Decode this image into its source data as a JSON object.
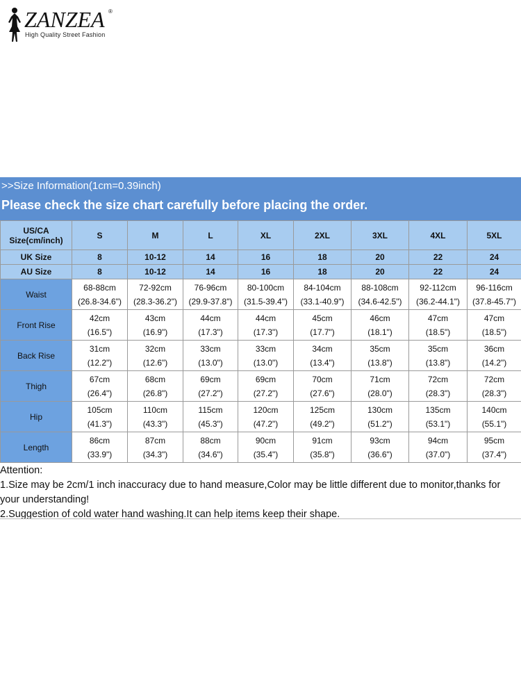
{
  "brand": {
    "name": "ZANZEA",
    "registered": "®",
    "tagline": "High Quality Street Fashion"
  },
  "banner": {
    "info": ">>Size Information(1cm=0.39inch)",
    "notice": "Please check the size chart carefully before placing the order."
  },
  "table": {
    "header_label": "US/CA Size(cm/inch)",
    "sizes": [
      "S",
      "M",
      "L",
      "XL",
      "2XL",
      "3XL",
      "4XL",
      "5XL"
    ],
    "uk_label": "UK Size",
    "uk": [
      "8",
      "10-12",
      "14",
      "16",
      "18",
      "20",
      "22",
      "24"
    ],
    "au_label": "AU Size",
    "au": [
      "8",
      "10-12",
      "14",
      "16",
      "18",
      "20",
      "22",
      "24"
    ],
    "rows": [
      {
        "label": "Waist",
        "cm": [
          "68-88cm",
          "72-92cm",
          "76-96cm",
          "80-100cm",
          "84-104cm",
          "88-108cm",
          "92-112cm",
          "96-116cm"
        ],
        "inch": [
          "(26.8-34.6\")",
          "(28.3-36.2\")",
          "(29.9-37.8\")",
          "(31.5-39.4\")",
          "(33.1-40.9\")",
          "(34.6-42.5\")",
          "(36.2-44.1\")",
          "(37.8-45.7\")"
        ]
      },
      {
        "label": "Front Rise",
        "cm": [
          "42cm",
          "43cm",
          "44cm",
          "44cm",
          "45cm",
          "46cm",
          "47cm",
          "47cm"
        ],
        "inch": [
          "(16.5\")",
          "(16.9\")",
          "(17.3\")",
          "(17.3\")",
          "(17.7\")",
          "(18.1\")",
          "(18.5\")",
          "(18.5\")"
        ]
      },
      {
        "label": "Back Rise",
        "cm": [
          "31cm",
          "32cm",
          "33cm",
          "33cm",
          "34cm",
          "35cm",
          "35cm",
          "36cm"
        ],
        "inch": [
          "(12.2\")",
          "(12.6\")",
          "(13.0\")",
          "(13.0\")",
          "(13.4\")",
          "(13.8\")",
          "(13.8\")",
          "(14.2\")"
        ]
      },
      {
        "label": "Thigh",
        "cm": [
          "67cm",
          "68cm",
          "69cm",
          "69cm",
          "70cm",
          "71cm",
          "72cm",
          "72cm"
        ],
        "inch": [
          "(26.4\")",
          "(26.8\")",
          "(27.2\")",
          "(27.2\")",
          "(27.6\")",
          "(28.0\")",
          "(28.3\")",
          "(28.3\")"
        ]
      },
      {
        "label": "Hip",
        "cm": [
          "105cm",
          "110cm",
          "115cm",
          "120cm",
          "125cm",
          "130cm",
          "135cm",
          "140cm"
        ],
        "inch": [
          "(41.3\")",
          "(43.3\")",
          "(45.3\")",
          "(47.2\")",
          "(49.2\")",
          "(51.2\")",
          "(53.1\")",
          "(55.1\")"
        ]
      },
      {
        "label": "Length",
        "cm": [
          "86cm",
          "87cm",
          "88cm",
          "90cm",
          "91cm",
          "93cm",
          "94cm",
          "95cm"
        ],
        "inch": [
          "(33.9\")",
          "(34.3\")",
          "(34.6\")",
          "(35.4\")",
          "(35.8\")",
          "(36.6\")",
          "(37.0\")",
          "(37.4\")"
        ]
      }
    ]
  },
  "attention": {
    "title": "Attention:",
    "note1": "1.Size may be 2cm/1 inch inaccuracy due to hand measure,Color may be little different due to monitor,thanks for your understanding!",
    "note2": "2.Suggestion of cold water hand washing.It can help items keep their shape."
  }
}
